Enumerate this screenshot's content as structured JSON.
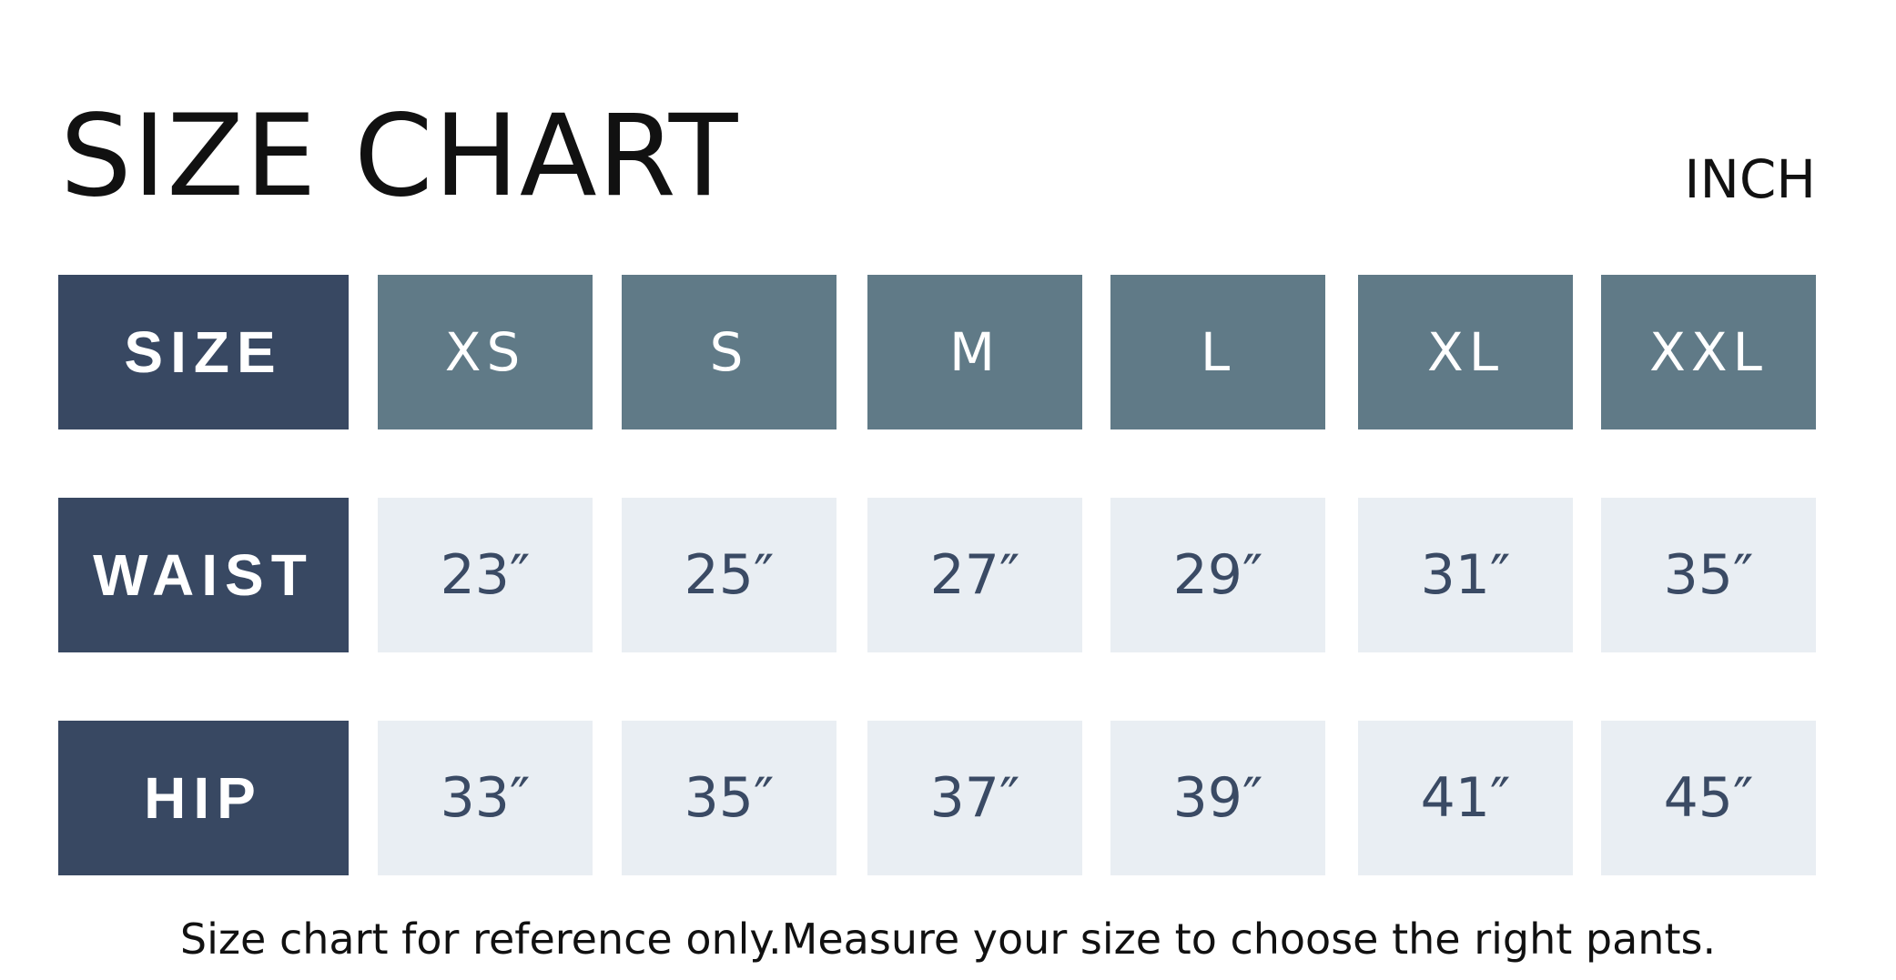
{
  "title": "SIZE CHART",
  "unit": "INCH",
  "colors": {
    "label_bg": "#384862",
    "header_bg": "#607a87",
    "value_bg": "#e9eef3",
    "value_text": "#3a4a64"
  },
  "table": {
    "rows": [
      {
        "label": "SIZE",
        "cells": [
          "XS",
          "S",
          "M",
          "L",
          "XL",
          "XXL"
        ]
      },
      {
        "label": "WAIST",
        "cells": [
          "23″",
          "25″",
          "27″",
          "29″",
          "31″",
          "35″"
        ]
      },
      {
        "label": "HIP",
        "cells": [
          "33″",
          "35″",
          "37″",
          "39″",
          "41″",
          "45″"
        ]
      }
    ]
  },
  "note": "Size chart for reference only.Measure your size to choose the right pants."
}
